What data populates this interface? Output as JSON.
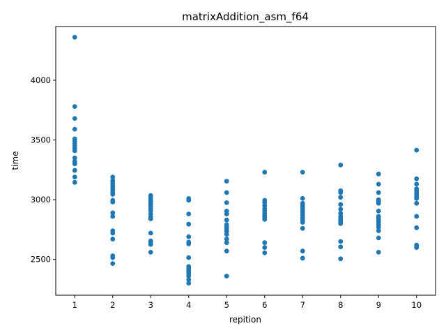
{
  "chart_data": {
    "type": "scatter",
    "title": "matrixAddition_asm_f64",
    "xlabel": "repition",
    "ylabel": "time",
    "xlim": [
      0.5,
      10.5
    ],
    "ylim": [
      2200,
      4450
    ],
    "xticks": [
      1,
      2,
      3,
      4,
      5,
      6,
      7,
      8,
      9,
      10
    ],
    "yticks": [
      2500,
      3000,
      3500,
      4000
    ],
    "color": "#1f77b4",
    "grid": false,
    "points": [
      {
        "x": 1,
        "y": 4360
      },
      {
        "x": 1,
        "y": 3780
      },
      {
        "x": 1,
        "y": 3680
      },
      {
        "x": 1,
        "y": 3590
      },
      {
        "x": 1,
        "y": 3510
      },
      {
        "x": 1,
        "y": 3490
      },
      {
        "x": 1,
        "y": 3470
      },
      {
        "x": 1,
        "y": 3450
      },
      {
        "x": 1,
        "y": 3430
      },
      {
        "x": 1,
        "y": 3410
      },
      {
        "x": 1,
        "y": 3350
      },
      {
        "x": 1,
        "y": 3320
      },
      {
        "x": 1,
        "y": 3300
      },
      {
        "x": 1,
        "y": 3245
      },
      {
        "x": 1,
        "y": 3190
      },
      {
        "x": 1,
        "y": 3145
      },
      {
        "x": 2,
        "y": 3190
      },
      {
        "x": 2,
        "y": 3160
      },
      {
        "x": 2,
        "y": 3140
      },
      {
        "x": 2,
        "y": 3120
      },
      {
        "x": 2,
        "y": 3100
      },
      {
        "x": 2,
        "y": 3080
      },
      {
        "x": 2,
        "y": 3060
      },
      {
        "x": 2,
        "y": 3045
      },
      {
        "x": 2,
        "y": 2995
      },
      {
        "x": 2,
        "y": 2980
      },
      {
        "x": 2,
        "y": 2890
      },
      {
        "x": 2,
        "y": 2860
      },
      {
        "x": 2,
        "y": 2740
      },
      {
        "x": 2,
        "y": 2720
      },
      {
        "x": 2,
        "y": 2670
      },
      {
        "x": 2,
        "y": 2530
      },
      {
        "x": 2,
        "y": 2515
      },
      {
        "x": 2,
        "y": 2465
      },
      {
        "x": 3,
        "y": 3035
      },
      {
        "x": 3,
        "y": 3020
      },
      {
        "x": 3,
        "y": 3000
      },
      {
        "x": 3,
        "y": 2985
      },
      {
        "x": 3,
        "y": 2965
      },
      {
        "x": 3,
        "y": 2945
      },
      {
        "x": 3,
        "y": 2925
      },
      {
        "x": 3,
        "y": 2905
      },
      {
        "x": 3,
        "y": 2880
      },
      {
        "x": 3,
        "y": 2855
      },
      {
        "x": 3,
        "y": 2840
      },
      {
        "x": 3,
        "y": 2720
      },
      {
        "x": 3,
        "y": 2655
      },
      {
        "x": 3,
        "y": 2640
      },
      {
        "x": 3,
        "y": 2625
      },
      {
        "x": 3,
        "y": 2560
      },
      {
        "x": 4,
        "y": 3010
      },
      {
        "x": 4,
        "y": 2995
      },
      {
        "x": 4,
        "y": 2880
      },
      {
        "x": 4,
        "y": 2795
      },
      {
        "x": 4,
        "y": 2690
      },
      {
        "x": 4,
        "y": 2645
      },
      {
        "x": 4,
        "y": 2630
      },
      {
        "x": 4,
        "y": 2515
      },
      {
        "x": 4,
        "y": 2440
      },
      {
        "x": 4,
        "y": 2425
      },
      {
        "x": 4,
        "y": 2410
      },
      {
        "x": 4,
        "y": 2395
      },
      {
        "x": 4,
        "y": 2380
      },
      {
        "x": 4,
        "y": 2360
      },
      {
        "x": 4,
        "y": 2330
      },
      {
        "x": 4,
        "y": 2300
      },
      {
        "x": 5,
        "y": 3155
      },
      {
        "x": 5,
        "y": 3060
      },
      {
        "x": 5,
        "y": 2975
      },
      {
        "x": 5,
        "y": 2905
      },
      {
        "x": 5,
        "y": 2880
      },
      {
        "x": 5,
        "y": 2830
      },
      {
        "x": 5,
        "y": 2790
      },
      {
        "x": 5,
        "y": 2770
      },
      {
        "x": 5,
        "y": 2755
      },
      {
        "x": 5,
        "y": 2735
      },
      {
        "x": 5,
        "y": 2710
      },
      {
        "x": 5,
        "y": 2670
      },
      {
        "x": 5,
        "y": 2640
      },
      {
        "x": 5,
        "y": 2570
      },
      {
        "x": 5,
        "y": 2360
      },
      {
        "x": 6,
        "y": 3230
      },
      {
        "x": 6,
        "y": 2995
      },
      {
        "x": 6,
        "y": 2975
      },
      {
        "x": 6,
        "y": 2950
      },
      {
        "x": 6,
        "y": 2925
      },
      {
        "x": 6,
        "y": 2905
      },
      {
        "x": 6,
        "y": 2885
      },
      {
        "x": 6,
        "y": 2865
      },
      {
        "x": 6,
        "y": 2850
      },
      {
        "x": 6,
        "y": 2835
      },
      {
        "x": 6,
        "y": 2640
      },
      {
        "x": 6,
        "y": 2600
      },
      {
        "x": 6,
        "y": 2555
      },
      {
        "x": 7,
        "y": 3230
      },
      {
        "x": 7,
        "y": 3010
      },
      {
        "x": 7,
        "y": 2970
      },
      {
        "x": 7,
        "y": 2950
      },
      {
        "x": 7,
        "y": 2930
      },
      {
        "x": 7,
        "y": 2910
      },
      {
        "x": 7,
        "y": 2890
      },
      {
        "x": 7,
        "y": 2870
      },
      {
        "x": 7,
        "y": 2850
      },
      {
        "x": 7,
        "y": 2830
      },
      {
        "x": 7,
        "y": 2810
      },
      {
        "x": 7,
        "y": 2760
      },
      {
        "x": 7,
        "y": 2570
      },
      {
        "x": 7,
        "y": 2510
      },
      {
        "x": 8,
        "y": 3290
      },
      {
        "x": 8,
        "y": 3075
      },
      {
        "x": 8,
        "y": 3060
      },
      {
        "x": 8,
        "y": 3020
      },
      {
        "x": 8,
        "y": 2960
      },
      {
        "x": 8,
        "y": 2920
      },
      {
        "x": 8,
        "y": 2885
      },
      {
        "x": 8,
        "y": 2860
      },
      {
        "x": 8,
        "y": 2845
      },
      {
        "x": 8,
        "y": 2830
      },
      {
        "x": 8,
        "y": 2815
      },
      {
        "x": 8,
        "y": 2800
      },
      {
        "x": 8,
        "y": 2650
      },
      {
        "x": 8,
        "y": 2605
      },
      {
        "x": 8,
        "y": 2505
      },
      {
        "x": 9,
        "y": 3215
      },
      {
        "x": 9,
        "y": 3130
      },
      {
        "x": 9,
        "y": 3060
      },
      {
        "x": 9,
        "y": 3000
      },
      {
        "x": 9,
        "y": 2985
      },
      {
        "x": 9,
        "y": 2970
      },
      {
        "x": 9,
        "y": 2905
      },
      {
        "x": 9,
        "y": 2860
      },
      {
        "x": 9,
        "y": 2845
      },
      {
        "x": 9,
        "y": 2830
      },
      {
        "x": 9,
        "y": 2810
      },
      {
        "x": 9,
        "y": 2790
      },
      {
        "x": 9,
        "y": 2770
      },
      {
        "x": 9,
        "y": 2740
      },
      {
        "x": 9,
        "y": 2680
      },
      {
        "x": 9,
        "y": 2560
      },
      {
        "x": 10,
        "y": 3415
      },
      {
        "x": 10,
        "y": 3175
      },
      {
        "x": 10,
        "y": 3130
      },
      {
        "x": 10,
        "y": 3090
      },
      {
        "x": 10,
        "y": 3075
      },
      {
        "x": 10,
        "y": 3055
      },
      {
        "x": 10,
        "y": 3040
      },
      {
        "x": 10,
        "y": 3025
      },
      {
        "x": 10,
        "y": 3010
      },
      {
        "x": 10,
        "y": 2970
      },
      {
        "x": 10,
        "y": 2860
      },
      {
        "x": 10,
        "y": 2765
      },
      {
        "x": 10,
        "y": 2620
      },
      {
        "x": 10,
        "y": 2610
      },
      {
        "x": 10,
        "y": 2600
      }
    ]
  }
}
